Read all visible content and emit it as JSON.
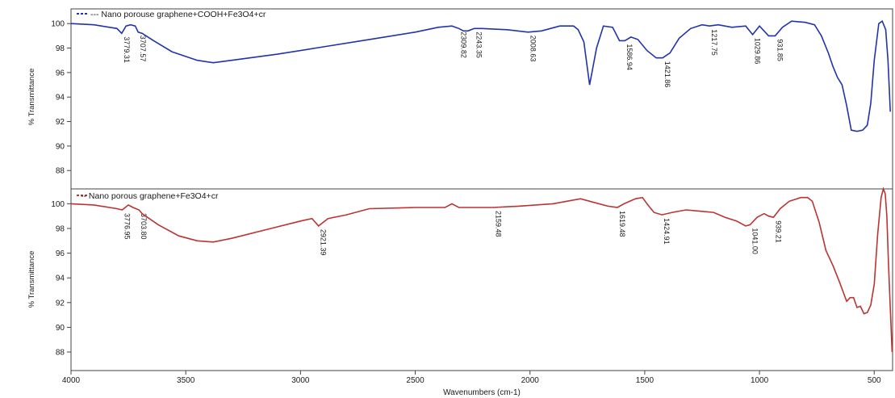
{
  "chart_data": [
    {
      "type": "line",
      "legend": "--- Nano porouse graphene+COOH+Fe3O4+cr",
      "xlabel": "",
      "ylabel": "% Transmittance",
      "xlim": [
        4000,
        420
      ],
      "ylim": [
        86.5,
        101.2
      ],
      "yticks": [
        88,
        90,
        92,
        94,
        96,
        98,
        100
      ],
      "color": "#2233aa",
      "x": [
        4000,
        3900,
        3800,
        3779.31,
        3760,
        3740,
        3720,
        3707.57,
        3690,
        3640,
        3560,
        3450,
        3380,
        3300,
        3100,
        2900,
        2700,
        2500,
        2400,
        2340,
        2309.82,
        2290,
        2270,
        2243.35,
        2210,
        2100,
        2008.63,
        1950,
        1870,
        1810,
        1790,
        1765,
        1740,
        1710,
        1680,
        1640,
        1610,
        1586.94,
        1560,
        1530,
        1490,
        1450,
        1421.86,
        1390,
        1350,
        1300,
        1250,
        1217.75,
        1180,
        1120,
        1060,
        1029.86,
        1000,
        960,
        931.85,
        900,
        860,
        800,
        760,
        730,
        700,
        680,
        660,
        640,
        620,
        600,
        575,
        550,
        530,
        515,
        500,
        480,
        465,
        450,
        440,
        430
      ],
      "y": [
        100.0,
        99.9,
        99.6,
        99.2,
        99.8,
        99.9,
        99.8,
        99.3,
        99.2,
        98.6,
        97.7,
        97.0,
        96.8,
        97.0,
        97.5,
        98.1,
        98.7,
        99.3,
        99.7,
        99.8,
        99.6,
        99.4,
        99.4,
        99.6,
        99.6,
        99.5,
        99.3,
        99.4,
        99.8,
        99.8,
        99.5,
        98.5,
        95.0,
        98.0,
        99.8,
        99.7,
        98.6,
        98.6,
        98.9,
        98.7,
        97.8,
        97.2,
        97.2,
        97.6,
        98.8,
        99.6,
        99.9,
        99.8,
        99.9,
        99.7,
        99.8,
        99.1,
        99.8,
        99.0,
        99.0,
        99.7,
        100.2,
        100.1,
        99.9,
        99.0,
        97.6,
        96.5,
        95.6,
        95.0,
        93.3,
        91.3,
        91.2,
        91.3,
        91.7,
        93.5,
        97.0,
        100.0,
        100.2,
        99.5,
        97.0,
        92.8
      ],
      "peak_labels": [
        "3779.31",
        "3707.57",
        "2309.82",
        "2243.35",
        "2008.63",
        "1586.94",
        "1421.86",
        "1217.75",
        "1029.86",
        "931.85"
      ]
    },
    {
      "type": "line",
      "legend": "-- Nano porous graphene+Fe3O4+cr",
      "xlabel": "Wavenumbers (cm-1)",
      "ylabel": "% Transmittance",
      "xlim": [
        4000,
        420
      ],
      "ylim": [
        86.5,
        101.2
      ],
      "yticks": [
        88,
        90,
        92,
        94,
        96,
        98,
        100
      ],
      "xticks": [
        4000,
        3500,
        3000,
        2500,
        2000,
        1500,
        1000,
        500
      ],
      "color": "#bb3333",
      "x": [
        4000,
        3900,
        3800,
        3776.95,
        3750,
        3730,
        3703.8,
        3690,
        3620,
        3530,
        3450,
        3380,
        3300,
        3150,
        3000,
        2950,
        2921.39,
        2880,
        2800,
        2700,
        2500,
        2370,
        2340,
        2310,
        2200,
        2159.48,
        2050,
        1900,
        1780,
        1720,
        1660,
        1619.48,
        1590,
        1540,
        1510,
        1490,
        1460,
        1424.91,
        1380,
        1320,
        1260,
        1200,
        1150,
        1100,
        1060,
        1041,
        1010,
        980,
        960,
        939.21,
        910,
        870,
        820,
        790,
        770,
        740,
        710,
        680,
        650,
        620,
        605,
        590,
        575,
        560,
        545,
        530,
        515,
        500,
        485,
        470,
        460,
        452,
        445,
        438,
        430,
        422
      ],
      "y": [
        100.0,
        99.9,
        99.6,
        99.5,
        99.9,
        99.7,
        99.5,
        99.2,
        98.3,
        97.4,
        97.0,
        96.9,
        97.2,
        97.9,
        98.6,
        98.8,
        98.2,
        98.8,
        99.1,
        99.6,
        99.7,
        99.7,
        100.0,
        99.7,
        99.7,
        99.7,
        99.8,
        100.0,
        100.4,
        100.1,
        99.8,
        99.7,
        100.0,
        100.4,
        100.5,
        100.0,
        99.3,
        99.1,
        99.3,
        99.5,
        99.4,
        99.3,
        98.9,
        98.6,
        98.2,
        98.3,
        98.9,
        99.2,
        99.0,
        98.9,
        99.6,
        100.2,
        100.5,
        100.5,
        100.2,
        98.5,
        96.2,
        95.0,
        93.6,
        92.1,
        92.4,
        92.4,
        91.6,
        91.7,
        91.1,
        91.2,
        91.8,
        93.5,
        97.5,
        100.5,
        101.2,
        100.8,
        99.0,
        95.2,
        91.5,
        88.0
      ],
      "peak_labels": [
        "3776.95",
        "3703.80",
        "2921.39",
        "2159.48",
        "1619.48",
        "1424.91",
        "1041.00",
        "939.21"
      ]
    }
  ]
}
